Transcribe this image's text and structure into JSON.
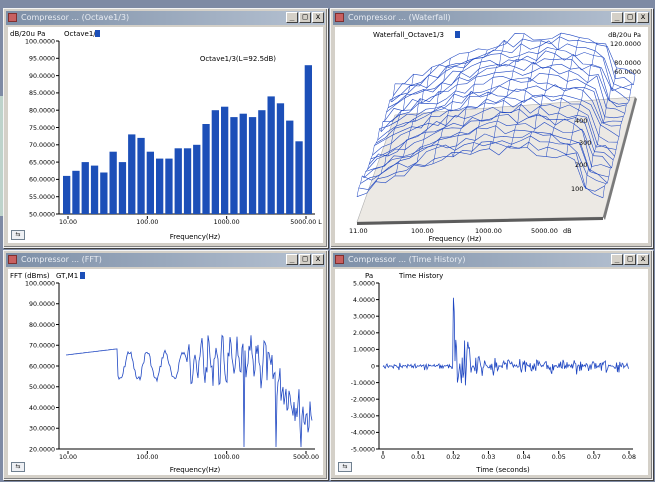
{
  "windows": [
    {
      "title": "Compressor ... (Octave1/3)",
      "close_label": "x"
    },
    {
      "title": "Compressor ... (Waterfall)",
      "close_label": "x"
    },
    {
      "title": "Compressor ... (FFT)",
      "close_label": "x"
    },
    {
      "title": "Compressor ... (Time History)",
      "close_label": "x"
    }
  ],
  "colors": {
    "series": "#1f47c2",
    "bar": "#1c4fb8",
    "titlebar": "#8b9ab0"
  },
  "chart_data": [
    {
      "type": "bar",
      "legend": "Octave1/3",
      "annotation": "Octave1/3(L=92.5dB)",
      "ylabel": "dB/20u Pa",
      "xlabel": "Frequency(Hz)",
      "ylim": [
        50,
        100
      ],
      "yticks": [
        "100.0000",
        "95.0000",
        "90.0000",
        "85.0000",
        "80.0000",
        "75.0000",
        "70.0000",
        "65.0000",
        "60.0000",
        "55.0000",
        "50.0000"
      ],
      "xticks": [
        "10.00",
        "100.00",
        "1000.00",
        "5000.00 L"
      ],
      "values": [
        61,
        62.5,
        65,
        64,
        62,
        68,
        65,
        73,
        72,
        68,
        66,
        66,
        69,
        69,
        70,
        76,
        80,
        81,
        78,
        79,
        78,
        80,
        84,
        82,
        77,
        71,
        93
      ]
    },
    {
      "type": "waterfall",
      "legend": "Waterfall_Octave1/3",
      "zlabel": "dB/20u Pa",
      "zticks": [
        "120.0000",
        "80.0000",
        "60.0000"
      ],
      "yticks": [
        "400",
        "300",
        "200",
        "100"
      ],
      "xticks": [
        "11.00",
        "100.00",
        "1000.00",
        "5000.00"
      ],
      "xlabel": "Frequency (Hz)",
      "dim_label": "dB"
    },
    {
      "type": "line",
      "ylabel": "FFT (dBms)",
      "legend": "GT,M1",
      "xlabel": "Frequency(Hz)",
      "ylim": [
        20,
        100
      ],
      "yticks": [
        "100.0000",
        "90.0000",
        "80.0000",
        "70.0000",
        "60.0000",
        "50.0000",
        "40.0000",
        "30.0000",
        "20.0000"
      ],
      "xticks": [
        "10.00",
        "100.00",
        "1000.00",
        "5000.00"
      ]
    },
    {
      "type": "line",
      "ylabel": "Pa",
      "legend": "Time History",
      "xlabel": "Time (seconds)",
      "ylim": [
        -5,
        5
      ],
      "yticks": [
        "5.0000",
        "4.0000",
        "3.0000",
        "2.0000",
        "1.0000",
        "0",
        "-1.0000",
        "-2.0000",
        "-3.0000",
        "-4.0000",
        "-5.0000"
      ],
      "xticks": [
        "0",
        "0.01",
        "0.02",
        "0.03",
        "0.04",
        "0.05",
        "0.07",
        "0.08"
      ]
    }
  ]
}
